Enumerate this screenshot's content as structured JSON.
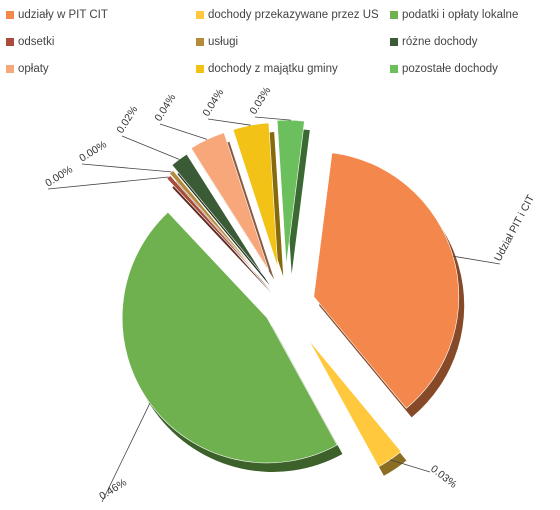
{
  "chart_data": {
    "type": "pie",
    "title": "",
    "legend_position": "top",
    "series": [
      {
        "name": "udziały w PIT CIT",
        "color": "#f4874b",
        "value": 0.37
      },
      {
        "name": "dochody przekazywane przez US",
        "color": "#ffc83d",
        "value": 0.03
      },
      {
        "name": "podatki i opłaty lokalne",
        "color": "#6fb14f",
        "value": 0.46
      },
      {
        "name": "odsetki",
        "color": "#a94c3c",
        "value": 0.0
      },
      {
        "name": "usługi",
        "color": "#b58a3a",
        "value": 0.0
      },
      {
        "name": "różne dochody",
        "color": "#3b5a36",
        "value": 0.02
      },
      {
        "name": "opłaty",
        "color": "#f7a77a",
        "value": 0.04
      },
      {
        "name": "dochody z majątku gminy",
        "color": "#f2c316",
        "value": 0.04
      },
      {
        "name": "pozostałe dochody",
        "color": "#6cbf5d",
        "value": 0.03
      }
    ],
    "data_labels": [
      {
        "series": "udziały w PIT CIT",
        "text": "Udział PIT i CIT"
      },
      {
        "series": "dochody przekazywane przez US",
        "text": "0.03%"
      },
      {
        "series": "podatki i opłaty lokalne",
        "text": "0.46%"
      },
      {
        "series": "odsetki",
        "text": "0.00%"
      },
      {
        "series": "usługi",
        "text": "0.00%"
      },
      {
        "series": "różne dochody",
        "text": "0.02%"
      },
      {
        "series": "opłaty",
        "text": "0.04%"
      },
      {
        "series": "dochody z majątku gminy",
        "text": "0.04%"
      },
      {
        "series": "pozostałe dochody",
        "text": "0.03%"
      }
    ]
  }
}
